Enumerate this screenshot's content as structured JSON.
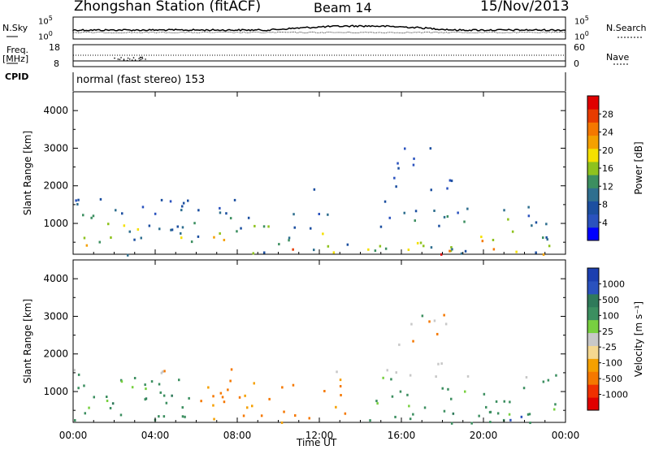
{
  "header": {
    "title": "Zhongshan Station (fitACF)",
    "beam": "Beam 14",
    "date": "15/Nov/2013"
  },
  "top_panels": {
    "nsky_label": "N.Sky",
    "nsky_ticks": [
      "10^5",
      "10^0"
    ],
    "nsearch_label": "N.Search",
    "nsearch_ticks": [
      "10^5",
      "10^0"
    ],
    "freq_label": "Freq.",
    "freq_unit": "[MHz]",
    "freq_ticks": [
      "18",
      "8"
    ],
    "nave_label": "Nave",
    "nave_ticks": [
      "60",
      "0"
    ],
    "cpid_label": "CPID",
    "cpid_value": "normal (fast stereo) 153"
  },
  "chart_data": [
    {
      "type": "heatmap",
      "name": "power",
      "ylabel": "Slant Range [km]",
      "xlabel": "Time UT",
      "ylim": [
        180,
        4500
      ],
      "yticks": [
        "4000",
        "3000",
        "2000",
        "1000"
      ],
      "xticks": [
        "00:00",
        "04:00",
        "08:00",
        "12:00",
        "16:00",
        "20:00",
        "00:00"
      ],
      "colorbar": {
        "label": "Power [dB]",
        "ticks": [
          "28",
          "24",
          "20",
          "16",
          "12",
          "8",
          "4"
        ],
        "colors": [
          "#0000ff",
          "#2a52be",
          "#1c4fa0",
          "#2f6f8f",
          "#3c8f60",
          "#8ec21e",
          "#f5e000",
          "#f5a000",
          "#f57800",
          "#e83c00",
          "#e00000"
        ]
      }
    },
    {
      "type": "heatmap",
      "name": "velocity",
      "ylabel": "Slant Range [km]",
      "xlabel": "Time UT",
      "ylim": [
        180,
        4500
      ],
      "yticks": [
        "4000",
        "3000",
        "2000",
        "1000"
      ],
      "xticks": [
        "00:00",
        "04:00",
        "08:00",
        "12:00",
        "16:00",
        "20:00",
        "00:00"
      ],
      "colorbar": {
        "label": "Velocity [m s⁻¹]",
        "ticks": [
          "1000",
          "500",
          "100",
          "25",
          "-25",
          "-100",
          "-500",
          "-1000"
        ],
        "colors": [
          "#e00000",
          "#f03000",
          "#f57800",
          "#f5a000",
          "#f5d890",
          "#c8c8c8",
          "#78d040",
          "#3c8f60",
          "#2f7a5a",
          "#2a52be",
          "#1c3fb0"
        ]
      }
    }
  ],
  "colors": {
    "power_low": "#1c4fa0",
    "power_high": "#e00000",
    "velocity_pos": "#3c8f60",
    "velocity_neg": "#f57800",
    "ground_scatter": "#c8c8c8"
  },
  "xlabel": "Time UT"
}
